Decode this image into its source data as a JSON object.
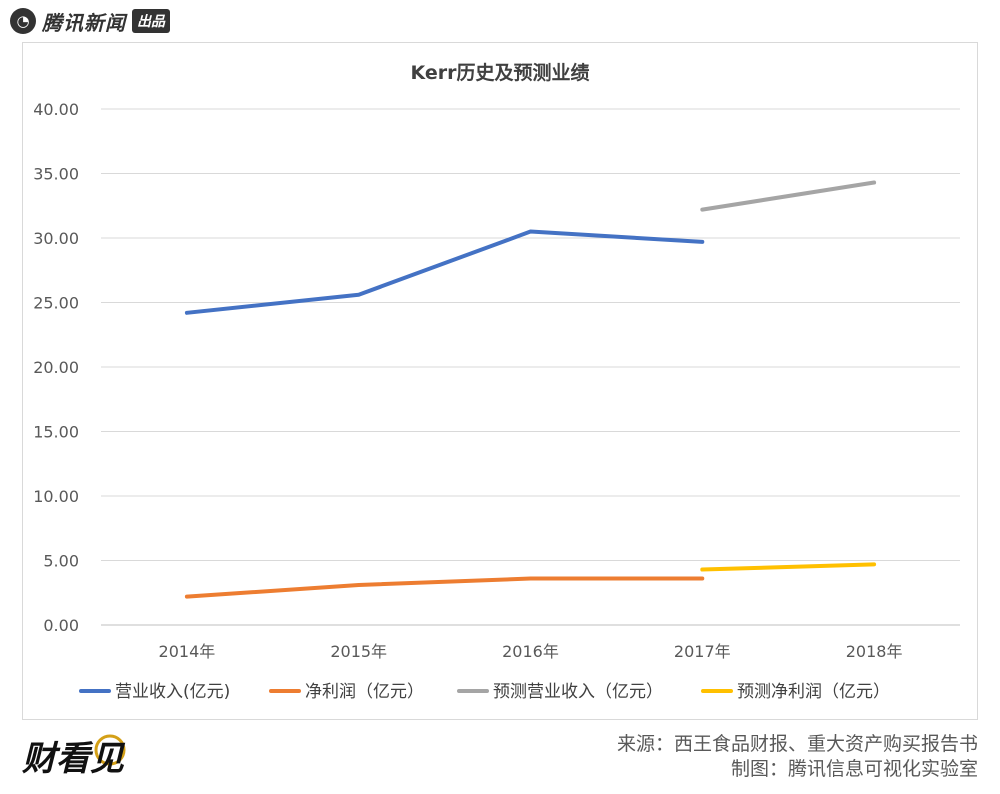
{
  "brand": {
    "name": "腾讯新闻",
    "badge": "出品"
  },
  "chart_data": {
    "type": "line",
    "title": "Kerr历史及预测业绩",
    "categories": [
      "2014年",
      "2015年",
      "2016年",
      "2017年",
      "2018年"
    ],
    "ylim": [
      0,
      40
    ],
    "yticks": [
      "0.00",
      "5.00",
      "10.00",
      "15.00",
      "20.00",
      "25.00",
      "30.00",
      "35.00",
      "40.00"
    ],
    "grid": true,
    "legend_position": "bottom",
    "series": [
      {
        "name": "营业收入(亿元)",
        "color": "#4472c4",
        "values": [
          24.2,
          25.6,
          30.5,
          29.7,
          null
        ]
      },
      {
        "name": "净利润（亿元）",
        "color": "#ed7d31",
        "values": [
          2.2,
          3.1,
          3.6,
          3.6,
          null
        ]
      },
      {
        "name": "预测营业收入（亿元）",
        "color": "#a5a5a5",
        "values": [
          null,
          null,
          null,
          32.2,
          34.3
        ]
      },
      {
        "name": "预测净利润（亿元）",
        "color": "#ffc000",
        "values": [
          null,
          null,
          null,
          4.3,
          4.7
        ]
      }
    ]
  },
  "footer": {
    "logo_text": "财看见",
    "source": "来源：西王食品财报、重大资产购买报告书",
    "credit": "制图：腾讯信息可视化实验室"
  }
}
